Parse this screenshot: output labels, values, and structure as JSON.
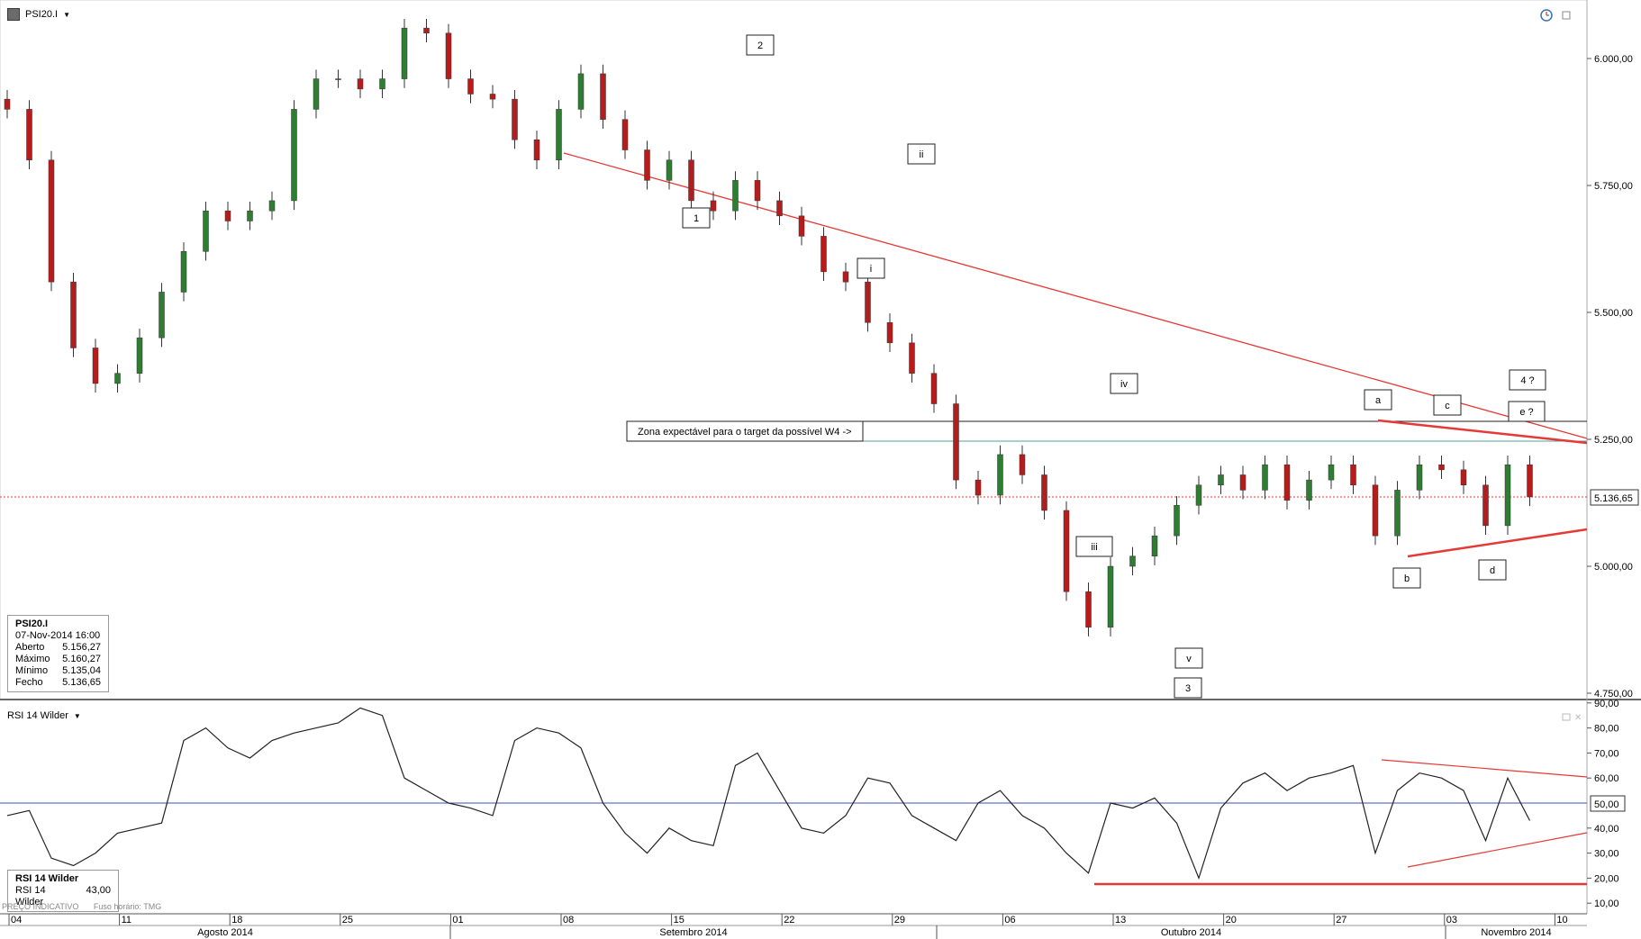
{
  "header": {
    "symbol": "PSI20.I",
    "dropdown_icon": "chevron-down-icon",
    "clock_icon": "clock-icon",
    "window_icon": "restore-window-icon"
  },
  "info": {
    "symbol": "PSI20.I",
    "datetime": "07-Nov-2014 16:00",
    "rows": [
      {
        "label": "Aberto",
        "value": "5.156,27"
      },
      {
        "label": "Máximo",
        "value": "5.160,27"
      },
      {
        "label": "Mínimo",
        "value": "5.135,04"
      },
      {
        "label": "Fecho",
        "value": "5.136,65"
      }
    ]
  },
  "rsi_header": {
    "title": "RSI 14 Wilder",
    "dropdown_icon": "chevron-down-icon"
  },
  "rsi_info": {
    "title": "RSI 14 Wilder",
    "label": "RSI 14 Wilder",
    "value": "43,00"
  },
  "footer_note": {
    "indicative": "PREÇO INDICATIVO",
    "timezone": "Fuso horário: TMG"
  },
  "price_axis": {
    "ticks": [
      "6.000,00",
      "5.750,00",
      "5.500,00",
      "5.250,00",
      "5.000,00",
      "4.750,00"
    ],
    "last_price": "5.136,65"
  },
  "rsi_axis": {
    "ticks": [
      "90,00",
      "80,00",
      "70,00",
      "60,00",
      "50,00",
      "40,00",
      "30,00",
      "20,00",
      "10,00"
    ],
    "level_tag": "50,00"
  },
  "time_axis": {
    "days": [
      "04",
      "11",
      "18",
      "25",
      "01",
      "08",
      "15",
      "22",
      "29",
      "06",
      "13",
      "20",
      "27",
      "03",
      "10"
    ],
    "months": [
      "Agosto 2014",
      "Setembro 2014",
      "Outubro 2014",
      "Novembro 2014"
    ]
  },
  "annotation_text": "Zona expectável para o target da possível W4 ->",
  "wave_labels": [
    "1",
    "2",
    "i",
    "ii",
    "iii",
    "iv",
    "v",
    "3",
    "a",
    "b",
    "c",
    "d",
    "e ?",
    "4 ?"
  ],
  "colors": {
    "up": "#2e7d32",
    "down": "#b71c1c",
    "trendline": "#e53935",
    "rsi_line": "#222222",
    "mid_line": "#3f51b5",
    "last_price": "#e53935"
  },
  "chart_data": [
    {
      "type": "candlestick",
      "title": "PSI20.I",
      "x": [
        "04-Aug",
        "05-Aug",
        "06-Aug",
        "07-Aug",
        "08-Aug",
        "11-Aug",
        "12-Aug",
        "13-Aug",
        "14-Aug",
        "15-Aug",
        "18-Aug",
        "19-Aug",
        "20-Aug",
        "21-Aug",
        "22-Aug",
        "25-Aug",
        "26-Aug",
        "27-Aug",
        "28-Aug",
        "29-Aug",
        "01-Sep",
        "02-Sep",
        "03-Sep",
        "04-Sep",
        "05-Sep",
        "08-Sep",
        "09-Sep",
        "10-Sep",
        "11-Sep",
        "12-Sep",
        "15-Sep",
        "16-Sep",
        "17-Sep",
        "18-Sep",
        "19-Sep",
        "22-Sep",
        "23-Sep",
        "24-Sep",
        "25-Sep",
        "26-Sep",
        "29-Sep",
        "30-Sep",
        "01-Oct",
        "02-Oct",
        "03-Oct",
        "06-Oct",
        "07-Oct",
        "08-Oct",
        "09-Oct",
        "10-Oct",
        "13-Oct",
        "14-Oct",
        "15-Oct",
        "16-Oct",
        "17-Oct",
        "20-Oct",
        "21-Oct",
        "22-Oct",
        "23-Oct",
        "24-Oct",
        "27-Oct",
        "28-Oct",
        "29-Oct",
        "30-Oct",
        "31-Oct",
        "03-Nov",
        "04-Nov",
        "05-Nov",
        "06-Nov",
        "07-Nov"
      ],
      "close": [
        5900,
        5800,
        5560,
        5430,
        5360,
        5380,
        5450,
        5540,
        5620,
        5700,
        5680,
        5700,
        5720,
        5900,
        5960,
        5960,
        5940,
        5960,
        6060,
        6050,
        5960,
        5930,
        5920,
        5840,
        5800,
        5900,
        5970,
        5880,
        5820,
        5760,
        5800,
        5720,
        5700,
        5760,
        5720,
        5690,
        5650,
        5580,
        5560,
        5480,
        5440,
        5380,
        5320,
        5170,
        5140,
        5220,
        5180,
        5110,
        4950,
        4880,
        5000,
        5020,
        5060,
        5120,
        5160,
        5180,
        5150,
        5200,
        5130,
        5170,
        5200,
        5160,
        5060,
        5150,
        5200,
        5190,
        5160,
        5080,
        5200,
        5136.65
      ],
      "ylim": [
        4750,
        6100
      ],
      "horizontal_lines": [
        5260,
        5250,
        5136.65
      ]
    },
    {
      "type": "line",
      "title": "RSI 14 Wilder",
      "x": [
        "04-Aug",
        "05-Aug",
        "06-Aug",
        "07-Aug",
        "08-Aug",
        "11-Aug",
        "12-Aug",
        "13-Aug",
        "14-Aug",
        "15-Aug",
        "18-Aug",
        "19-Aug",
        "20-Aug",
        "21-Aug",
        "22-Aug",
        "25-Aug",
        "26-Aug",
        "27-Aug",
        "28-Aug",
        "29-Aug",
        "01-Sep",
        "02-Sep",
        "03-Sep",
        "04-Sep",
        "05-Sep",
        "08-Sep",
        "09-Sep",
        "10-Sep",
        "11-Sep",
        "12-Sep",
        "15-Sep",
        "16-Sep",
        "17-Sep",
        "18-Sep",
        "19-Sep",
        "22-Sep",
        "23-Sep",
        "24-Sep",
        "25-Sep",
        "26-Sep",
        "29-Sep",
        "30-Sep",
        "01-Oct",
        "02-Oct",
        "03-Oct",
        "06-Oct",
        "07-Oct",
        "08-Oct",
        "09-Oct",
        "10-Oct",
        "13-Oct",
        "14-Oct",
        "15-Oct",
        "16-Oct",
        "17-Oct",
        "20-Oct",
        "21-Oct",
        "22-Oct",
        "23-Oct",
        "24-Oct",
        "27-Oct",
        "28-Oct",
        "29-Oct",
        "30-Oct",
        "31-Oct",
        "03-Nov",
        "04-Nov",
        "05-Nov",
        "06-Nov",
        "07-Nov"
      ],
      "values": [
        45,
        47,
        28,
        25,
        30,
        38,
        40,
        42,
        75,
        80,
        72,
        68,
        75,
        78,
        80,
        82,
        88,
        85,
        60,
        55,
        50,
        48,
        45,
        75,
        80,
        78,
        72,
        50,
        38,
        30,
        40,
        35,
        33,
        65,
        70,
        55,
        40,
        38,
        45,
        60,
        58,
        45,
        40,
        35,
        50,
        55,
        45,
        40,
        30,
        22,
        50,
        48,
        52,
        42,
        20,
        48,
        58,
        62,
        55,
        60,
        62,
        65,
        30,
        55,
        62,
        60,
        55,
        35,
        60,
        43
      ],
      "ylim": [
        5,
        92
      ],
      "horizontal_lines": [
        50
      ]
    }
  ]
}
